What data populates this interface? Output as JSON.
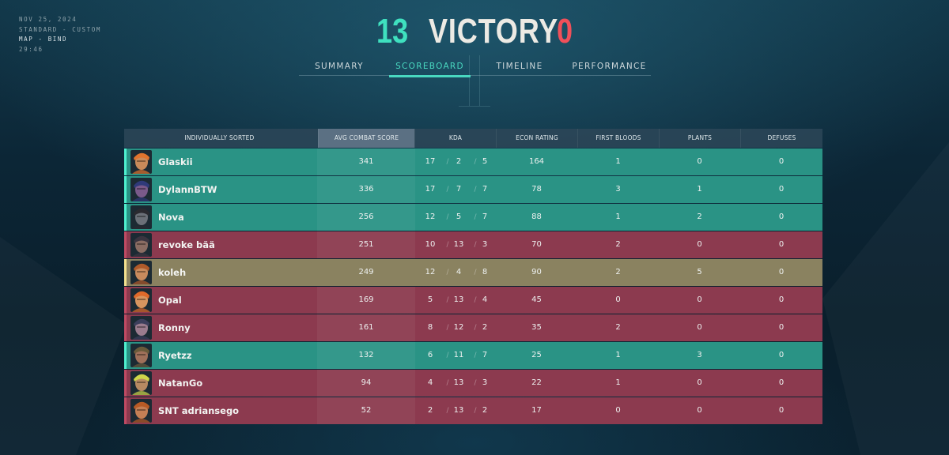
{
  "match": {
    "date": "NOV 25, 2024",
    "mode": "STANDARD - CUSTOM",
    "map": "MAP - BIND",
    "duration": "29:46"
  },
  "score": {
    "team_a": "13",
    "result": "VICTORY",
    "team_b": "0"
  },
  "colors": {
    "win_row": "#2a9385",
    "loss_row": "#8c3a4f",
    "self_row": "#8a8260",
    "accent_teal": "#3fe0bf",
    "accent_red": "#f0505a"
  },
  "tabs": [
    "SUMMARY",
    "SCOREBOARD",
    "TIMELINE",
    "PERFORMANCE"
  ],
  "active_tab": "SCOREBOARD",
  "table": {
    "headers": [
      "INDIVIDUALLY SORTED",
      "AVG COMBAT SCORE",
      "KDA",
      "ECON RATING",
      "FIRST BLOODS",
      "PLANTS",
      "DEFUSES"
    ],
    "rows": [
      {
        "name": "Glaskii",
        "team": "win",
        "agent_icon": "agent-portrait-icon",
        "acs": "341",
        "k": "17",
        "d": "2",
        "a": "5",
        "econ": "164",
        "fb": "1",
        "plants": "0",
        "defuses": "0"
      },
      {
        "name": "DylannBTW",
        "team": "win",
        "agent_icon": "agent-portrait-icon",
        "acs": "336",
        "k": "17",
        "d": "7",
        "a": "7",
        "econ": "78",
        "fb": "3",
        "plants": "1",
        "defuses": "0"
      },
      {
        "name": "Nova",
        "team": "win",
        "agent_icon": "agent-portrait-icon",
        "acs": "256",
        "k": "12",
        "d": "5",
        "a": "7",
        "econ": "88",
        "fb": "1",
        "plants": "2",
        "defuses": "0"
      },
      {
        "name": "revoke bää",
        "team": "loss",
        "agent_icon": "agent-portrait-icon",
        "acs": "251",
        "k": "10",
        "d": "13",
        "a": "3",
        "econ": "70",
        "fb": "2",
        "plants": "0",
        "defuses": "0"
      },
      {
        "name": "koleh",
        "team": "self",
        "agent_icon": "agent-portrait-icon",
        "acs": "249",
        "k": "12",
        "d": "4",
        "a": "8",
        "econ": "90",
        "fb": "2",
        "plants": "5",
        "defuses": "0"
      },
      {
        "name": "Opal",
        "team": "loss",
        "agent_icon": "agent-portrait-icon",
        "acs": "169",
        "k": "5",
        "d": "13",
        "a": "4",
        "econ": "45",
        "fb": "0",
        "plants": "0",
        "defuses": "0"
      },
      {
        "name": "Ronny",
        "team": "loss",
        "agent_icon": "agent-portrait-icon",
        "acs": "161",
        "k": "8",
        "d": "12",
        "a": "2",
        "econ": "35",
        "fb": "2",
        "plants": "0",
        "defuses": "0"
      },
      {
        "name": "Ryetzz",
        "team": "win",
        "agent_icon": "agent-portrait-icon",
        "acs": "132",
        "k": "6",
        "d": "11",
        "a": "7",
        "econ": "25",
        "fb": "1",
        "plants": "3",
        "defuses": "0"
      },
      {
        "name": "NatanGo",
        "team": "loss",
        "agent_icon": "agent-portrait-icon",
        "acs": "94",
        "k": "4",
        "d": "13",
        "a": "3",
        "econ": "22",
        "fb": "1",
        "plants": "0",
        "defuses": "0"
      },
      {
        "name": "SNT adriansego",
        "team": "loss",
        "agent_icon": "agent-portrait-icon",
        "acs": "52",
        "k": "2",
        "d": "13",
        "a": "2",
        "econ": "17",
        "fb": "0",
        "plants": "0",
        "defuses": "0"
      }
    ]
  }
}
